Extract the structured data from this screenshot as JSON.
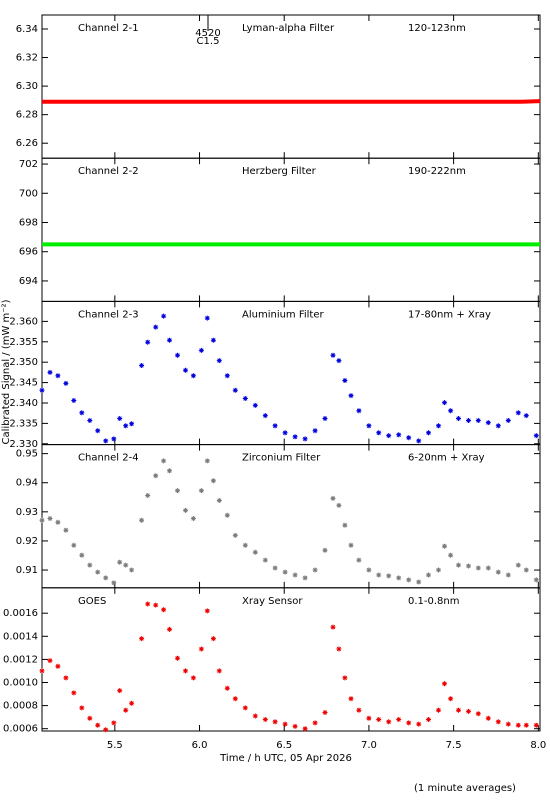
{
  "ylabel": "Calibrated Signal / (mW m⁻²)",
  "footer": "(1 minute averages)",
  "chart_data": [
    {
      "type": "line",
      "labels": [
        "Channel 2-1",
        "Lyman-alpha Filter",
        "120-123nm"
      ],
      "label_color": "#cc0000",
      "color": "#ff0000",
      "event": {
        "x": 6.05,
        "labels": [
          "4520",
          "C1.5"
        ]
      },
      "x": [
        5.07,
        5.5,
        6.0,
        6.5,
        7.0,
        7.5,
        7.9,
        8.01
      ],
      "values": [
        6.289,
        6.289,
        6.289,
        6.289,
        6.289,
        6.289,
        6.289,
        6.2895
      ],
      "xlim": [
        5.07,
        8.01
      ],
      "xticks": [
        5.5,
        {
          "value": 6,
          "label": "6.0"
        },
        6.5,
        {
          "value": 7,
          "label": "7.0"
        },
        7.5,
        {
          "value": 8,
          "label": "8.0"
        }
      ],
      "ylim": [
        6.2495,
        6.3498
      ],
      "yticks": [
        6.26,
        6.28,
        {
          "value": 6.3,
          "label": "6.30"
        },
        6.32,
        6.34
      ]
    },
    {
      "type": "line",
      "labels": [
        "Channel 2-2",
        "Herzberg Filter",
        "190-222nm"
      ],
      "label_color": "#00c000",
      "color": "#00ee00",
      "x": [
        5.07,
        5.5,
        6.0,
        6.5,
        7.0,
        7.5,
        8.01
      ],
      "values": [
        696.5,
        696.5,
        696.5,
        696.5,
        696.5,
        696.5,
        696.5
      ],
      "xlim": [
        5.07,
        8.01
      ],
      "xticks": [
        5.5,
        {
          "value": 6,
          "label": "6.0"
        },
        6.5,
        {
          "value": 7,
          "label": "7.0"
        },
        7.5,
        {
          "value": 8,
          "label": "8.0"
        }
      ],
      "ylim": [
        692.6,
        702.4
      ],
      "yticks": [
        694,
        696,
        698,
        700,
        702
      ]
    },
    {
      "type": "scatter",
      "labels": [
        "Channel 2-3",
        "Aluminium Filter",
        "17-80nm + Xray"
      ],
      "label_color": "#0000cc",
      "color": "#0000dd",
      "x": [
        5.07,
        5.117,
        5.164,
        5.211,
        5.258,
        5.305,
        5.352,
        5.399,
        5.446,
        5.494,
        5.529,
        5.564,
        5.599,
        5.658,
        5.694,
        5.741,
        5.788,
        5.823,
        5.87,
        5.917,
        5.964,
        6.011,
        6.046,
        6.082,
        6.117,
        6.164,
        6.211,
        6.27,
        6.329,
        6.388,
        6.446,
        6.505,
        6.564,
        6.623,
        6.682,
        6.741,
        6.788,
        6.823,
        6.858,
        6.894,
        6.941,
        7.0,
        7.058,
        7.117,
        7.176,
        7.235,
        7.294,
        7.352,
        7.411,
        7.446,
        7.482,
        7.529,
        7.588,
        7.646,
        7.705,
        7.764,
        7.823,
        7.882,
        7.929,
        7.988
      ],
      "values": [
        2.3431,
        2.3475,
        2.3467,
        2.3448,
        2.3406,
        2.3376,
        2.3357,
        2.3332,
        2.3307,
        2.3312,
        2.3362,
        2.3344,
        2.3349,
        2.3492,
        2.3549,
        2.3586,
        2.3613,
        2.3554,
        2.3517,
        2.348,
        2.3467,
        2.3529,
        2.3608,
        2.3554,
        2.3504,
        2.3467,
        2.3431,
        2.3411,
        2.3394,
        2.3369,
        2.3344,
        2.3327,
        2.3317,
        2.3312,
        2.3332,
        2.3362,
        2.3517,
        2.3504,
        2.3455,
        2.3418,
        2.3381,
        2.3344,
        2.3327,
        2.332,
        2.3322,
        2.3315,
        2.3307,
        2.3327,
        2.3344,
        2.3401,
        2.3381,
        2.3362,
        2.3357,
        2.3357,
        2.3352,
        2.3344,
        2.3357,
        2.3376,
        2.3369,
        2.332
      ],
      "xlim": [
        5.07,
        8.01
      ],
      "xticks": [
        5.5,
        {
          "value": 6,
          "label": "6.0"
        },
        6.5,
        {
          "value": 7,
          "label": "7.0"
        },
        7.5,
        {
          "value": 8,
          "label": "8.0"
        }
      ],
      "ylim": [
        2.3298,
        2.3649
      ],
      "yticks": [
        {
          "value": 2.33,
          "label": "2.330"
        },
        2.335,
        {
          "value": 2.34,
          "label": "2.340"
        },
        2.345,
        {
          "value": 2.35,
          "label": "2.350"
        },
        2.355,
        {
          "value": 2.36,
          "label": "2.360"
        }
      ]
    },
    {
      "type": "scatter",
      "labels": [
        "Channel 2-4",
        "Zirconium Filter",
        "6-20nm + Xray"
      ],
      "label_color": "#808080",
      "color": "#7a7a7a",
      "x": [
        5.07,
        5.117,
        5.164,
        5.211,
        5.258,
        5.305,
        5.352,
        5.399,
        5.446,
        5.494,
        5.529,
        5.564,
        5.599,
        5.658,
        5.694,
        5.741,
        5.788,
        5.823,
        5.87,
        5.917,
        5.964,
        6.011,
        6.046,
        6.082,
        6.117,
        6.164,
        6.211,
        6.27,
        6.329,
        6.388,
        6.446,
        6.505,
        6.564,
        6.623,
        6.682,
        6.741,
        6.788,
        6.823,
        6.858,
        6.894,
        6.941,
        7.0,
        7.058,
        7.117,
        7.176,
        7.235,
        7.294,
        7.352,
        7.411,
        7.446,
        7.482,
        7.529,
        7.588,
        7.646,
        7.705,
        7.764,
        7.823,
        7.882,
        7.929,
        7.988
      ],
      "values": [
        0.9271,
        0.9277,
        0.9264,
        0.9237,
        0.9185,
        0.9151,
        0.9117,
        0.9093,
        0.9073,
        0.9056,
        0.9127,
        0.9117,
        0.91,
        0.9271,
        0.9356,
        0.9424,
        0.9475,
        0.9441,
        0.9373,
        0.9305,
        0.9277,
        0.9373,
        0.9475,
        0.9407,
        0.9339,
        0.9288,
        0.9219,
        0.9185,
        0.9161,
        0.9134,
        0.9107,
        0.9093,
        0.9083,
        0.9073,
        0.91,
        0.9168,
        0.9346,
        0.9322,
        0.9254,
        0.9185,
        0.9134,
        0.91,
        0.9083,
        0.908,
        0.9073,
        0.9066,
        0.9059,
        0.9083,
        0.91,
        0.9182,
        0.9151,
        0.9117,
        0.9114,
        0.9107,
        0.9107,
        0.9093,
        0.9083,
        0.9117,
        0.91,
        0.9066
      ],
      "xlim": [
        5.07,
        8.01
      ],
      "xticks": [
        5.5,
        {
          "value": 6,
          "label": "6.0"
        },
        6.5,
        {
          "value": 7,
          "label": "7.0"
        },
        7.5,
        {
          "value": 8,
          "label": "8.0"
        }
      ],
      "ylim": [
        0.9039,
        0.9531
      ],
      "yticks": [
        0.91,
        0.92,
        0.93,
        0.94,
        0.95
      ]
    },
    {
      "type": "scatter",
      "labels": [
        "GOES",
        "Xray Sensor",
        "0.1-0.8nm"
      ],
      "label_color": "#dd0000",
      "color": "#ee0000",
      "xlabel": "Time / h UTC, 05 Apr 2026",
      "x": [
        5.07,
        5.117,
        5.164,
        5.211,
        5.258,
        5.305,
        5.352,
        5.399,
        5.446,
        5.494,
        5.529,
        5.564,
        5.599,
        5.658,
        5.694,
        5.741,
        5.788,
        5.823,
        5.87,
        5.917,
        5.964,
        6.011,
        6.046,
        6.082,
        6.117,
        6.164,
        6.211,
        6.27,
        6.329,
        6.388,
        6.446,
        6.505,
        6.564,
        6.623,
        6.682,
        6.741,
        6.788,
        6.823,
        6.858,
        6.894,
        6.941,
        7.0,
        7.058,
        7.117,
        7.176,
        7.235,
        7.294,
        7.352,
        7.411,
        7.446,
        7.482,
        7.529,
        7.588,
        7.646,
        7.705,
        7.764,
        7.823,
        7.882,
        7.929,
        7.988
      ],
      "values": [
        0.0011,
        0.00119,
        0.00114,
        0.00104,
        0.00091,
        0.00078,
        0.00069,
        0.00063,
        0.00059,
        0.00065,
        0.00093,
        0.00076,
        0.00082,
        0.00138,
        0.00168,
        0.00167,
        0.00163,
        0.00146,
        0.00121,
        0.0011,
        0.00104,
        0.00129,
        0.00162,
        0.00138,
        0.0011,
        0.00095,
        0.00086,
        0.00078,
        0.00071,
        0.00068,
        0.00066,
        0.00064,
        0.00062,
        0.0006,
        0.00065,
        0.00074,
        0.00148,
        0.00129,
        0.00104,
        0.00086,
        0.00076,
        0.00069,
        0.00068,
        0.00066,
        0.00068,
        0.00065,
        0.00064,
        0.00068,
        0.00076,
        0.00099,
        0.00086,
        0.00076,
        0.00075,
        0.00073,
        0.00069,
        0.00066,
        0.00064,
        0.00063,
        0.00063,
        0.00063
      ],
      "xlim": [
        5.07,
        8.01
      ],
      "xticks": [
        5.5,
        {
          "value": 6,
          "label": "6.0"
        },
        6.5,
        {
          "value": 7,
          "label": "7.0"
        },
        7.5,
        {
          "value": 8,
          "label": "8.0"
        }
      ],
      "ylim": [
        0.00058,
        0.00182
      ],
      "yticks": [
        0.0006,
        0.0008,
        {
          "value": 0.001,
          "label": "0.0010"
        },
        0.0012,
        0.0014,
        0.0016
      ]
    }
  ]
}
